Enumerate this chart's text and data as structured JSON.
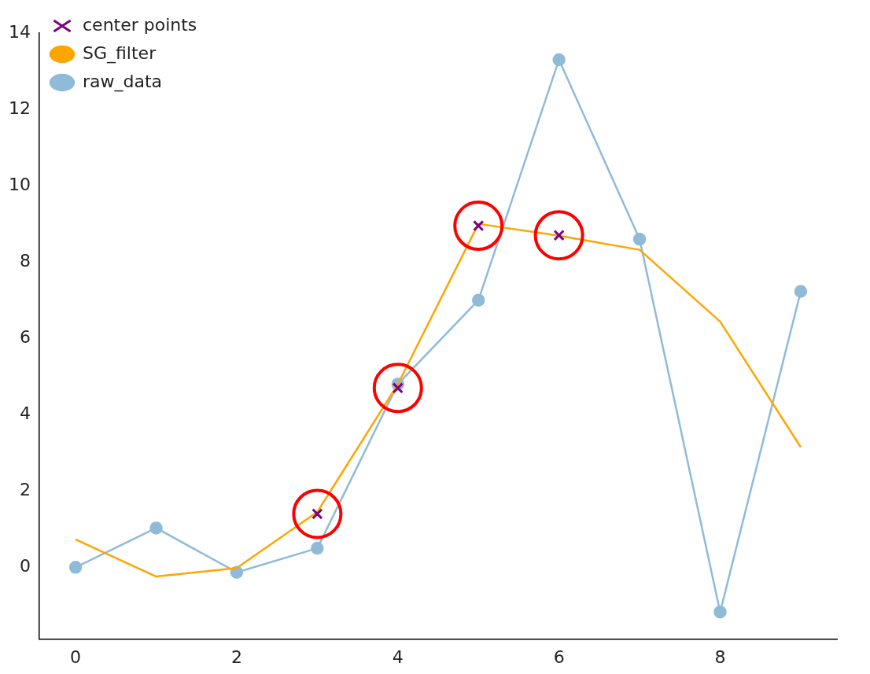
{
  "chart_data": {
    "type": "line",
    "xlim": [
      -0.45,
      9.45
    ],
    "ylim": [
      -1.88,
      14
    ],
    "xticks": [
      0,
      2,
      4,
      6,
      8
    ],
    "yticks": [
      0,
      2,
      4,
      6,
      8,
      10,
      12,
      14
    ],
    "grid": false,
    "legend": "top left",
    "series": [
      {
        "name": "raw_data",
        "type": "line",
        "color": "#8fbbd9",
        "marker": "circle",
        "x": [
          0,
          1,
          2,
          3,
          4,
          5,
          6,
          7,
          8,
          9
        ],
        "values": [
          0,
          1.03,
          -0.13,
          0.5,
          4.8,
          7.0,
          13.3,
          8.6,
          -1.17,
          7.23
        ]
      },
      {
        "name": "SG_filter",
        "type": "line",
        "color": "#ffa500",
        "marker": "none",
        "x": [
          0,
          1,
          2,
          3,
          4,
          5,
          6,
          7,
          8,
          9
        ],
        "values": [
          0.73,
          -0.24,
          -0.02,
          1.45,
          4.8,
          9.0,
          8.69,
          8.32,
          6.44,
          3.15
        ]
      },
      {
        "name": "center points",
        "type": "scatter",
        "color": "#800080",
        "marker": "cross",
        "x": [
          3,
          4,
          5,
          6
        ],
        "values": [
          1.4,
          4.7,
          8.95,
          8.7
        ]
      },
      {
        "type": "scatter",
        "color": "#ff0000",
        "marker": "circle",
        "x": [
          3,
          4,
          5,
          6
        ],
        "values": [
          1.4,
          4.7,
          8.95,
          8.7
        ]
      }
    ]
  }
}
